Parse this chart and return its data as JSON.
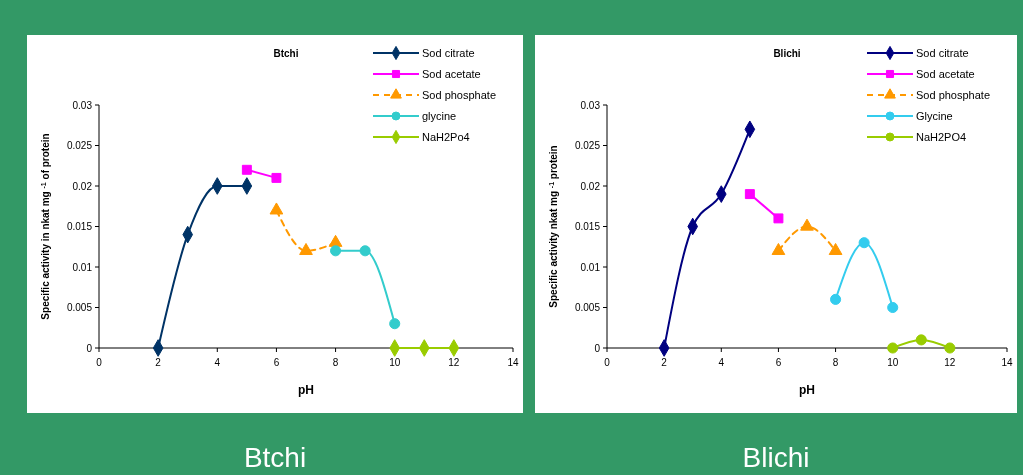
{
  "chart_data": [
    {
      "type": "line",
      "title": "Btchi",
      "xlabel": "pH",
      "ylabel": "Specific activity in  nkat mg $^{-1}$ of protein",
      "xlim": [
        0,
        14
      ],
      "xticks": [
        0,
        2,
        4,
        6,
        8,
        10,
        12,
        14
      ],
      "ylim": [
        0,
        0.03
      ],
      "yticks": [
        0,
        0.005,
        0.01,
        0.015,
        0.02,
        0.025,
        0.03
      ],
      "grid": false,
      "legend": "top right",
      "annotations": [
        "Btchi"
      ],
      "series": [
        {
          "name": "Sod citrate",
          "color": "#003366",
          "marker": "diamond",
          "line_style": "solid",
          "x": [
            2,
            3,
            4,
            5
          ],
          "values": [
            0,
            0.014,
            0.02,
            0.02
          ]
        },
        {
          "name": "Sod acetate",
          "color": "#ff00ff",
          "marker": "square",
          "line_style": "solid",
          "x": [
            5,
            6
          ],
          "values": [
            0.022,
            0.021
          ]
        },
        {
          "name": "Sod phosphate",
          "color": "#ff9900",
          "marker": "triangle",
          "line_style": "dashed",
          "x": [
            6,
            7,
            8
          ],
          "values": [
            0.017,
            0.012,
            0.013
          ]
        },
        {
          "name": "glycine",
          "color": "#33cccc",
          "marker": "circle",
          "line_style": "solid",
          "x": [
            8,
            9,
            10
          ],
          "values": [
            0.012,
            0.012,
            0.003
          ]
        },
        {
          "name": "NaH2Po4",
          "color": "#99cc00",
          "marker": "diamond",
          "line_style": "solid",
          "x": [
            10,
            11,
            12
          ],
          "values": [
            0,
            0,
            0
          ]
        }
      ]
    },
    {
      "type": "line",
      "title": "Blichi",
      "xlabel": "pH",
      "ylabel": "Specific activity nkat mg $^{-1}$ protein",
      "xlim": [
        0,
        14
      ],
      "xticks": [
        0,
        2,
        4,
        6,
        8,
        10,
        12,
        14
      ],
      "ylim": [
        0,
        0.03
      ],
      "yticks": [
        0,
        0.005,
        0.01,
        0.015,
        0.02,
        0.025,
        0.03
      ],
      "grid": false,
      "legend": "top right",
      "annotations": [
        "Blichi"
      ],
      "series": [
        {
          "name": "Sod citrate",
          "color": "#000080",
          "marker": "diamond",
          "line_style": "solid",
          "x": [
            2,
            3,
            4,
            5
          ],
          "values": [
            0,
            0.015,
            0.019,
            0.027
          ]
        },
        {
          "name": "Sod acetate",
          "color": "#ff00ff",
          "marker": "square",
          "line_style": "solid",
          "x": [
            5,
            6
          ],
          "values": [
            0.019,
            0.016
          ]
        },
        {
          "name": "Sod phosphate",
          "color": "#ff9900",
          "marker": "triangle",
          "line_style": "dashed",
          "x": [
            6,
            7,
            8
          ],
          "values": [
            0.012,
            0.015,
            0.012
          ]
        },
        {
          "name": "Glycine",
          "color": "#33ccee",
          "marker": "circle",
          "line_style": "solid",
          "x": [
            8,
            9,
            10
          ],
          "values": [
            0.006,
            0.013,
            0.005
          ]
        },
        {
          "name": "NaH2PO4",
          "color": "#99cc00",
          "marker": "circle",
          "line_style": "solid",
          "x": [
            10,
            11,
            12
          ],
          "values": [
            0,
            0.001,
            0
          ]
        }
      ]
    }
  ]
}
